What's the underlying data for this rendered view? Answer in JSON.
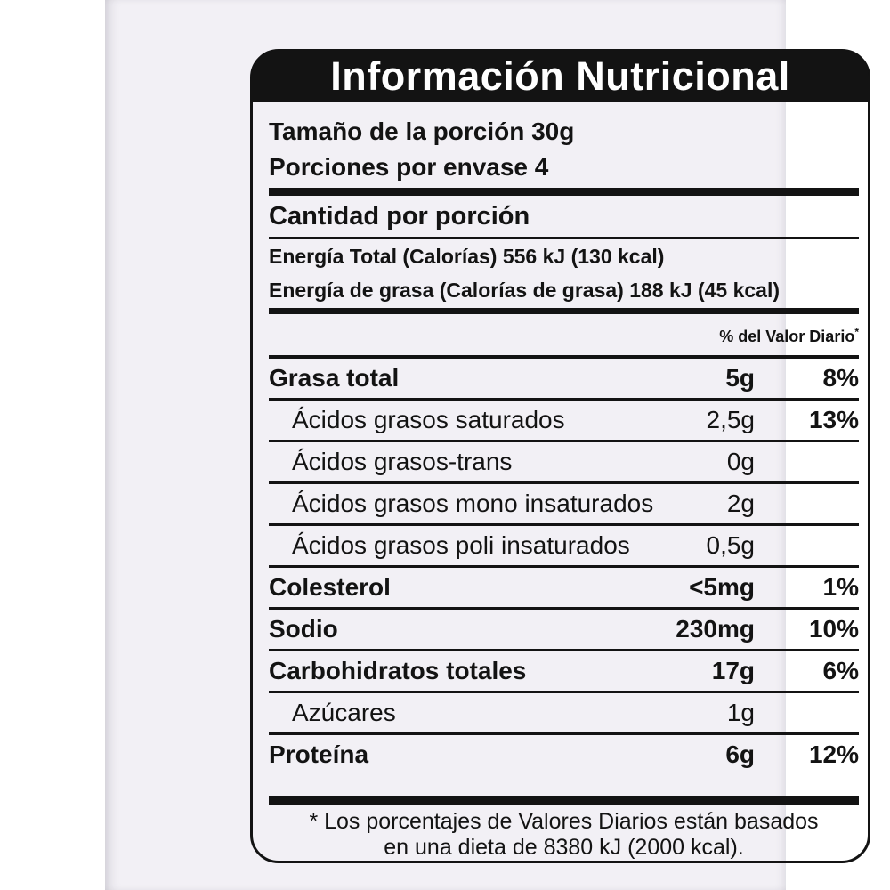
{
  "colors": {
    "ink": "#131313",
    "label_surface": "#f2f0f5",
    "page_background": "#ffffff",
    "title_text": "#ffffff"
  },
  "label": {
    "title": "Información Nutricional",
    "serving_size_line": "Tamaño de la porción 30g",
    "servings_per_container_line": "Porciones por envase 4",
    "amount_per_serving_heading": "Cantidad por porción",
    "energy_total_line": "Energía Total (Calorías) 556 kJ (130 kcal)",
    "energy_fat_line": "Energía de grasa (Calorías de grasa) 188 kJ (45 kcal)",
    "daily_value_header": "% del Valor Diario",
    "daily_value_footnote_marker": "*",
    "rows": [
      {
        "name": "Grasa total",
        "amount": "5g",
        "dv": "8%",
        "style": "main"
      },
      {
        "name": "Ácidos grasos saturados",
        "amount": "2,5g",
        "dv": "13%",
        "style": "sub"
      },
      {
        "name": "Ácidos grasos-trans",
        "amount": "0g",
        "dv": "",
        "style": "sub"
      },
      {
        "name": "Ácidos grasos mono insaturados",
        "amount": "2g",
        "dv": "",
        "style": "sub"
      },
      {
        "name": "Ácidos grasos poli insaturados",
        "amount": "0,5g",
        "dv": "",
        "style": "sub"
      },
      {
        "name": "Colesterol",
        "amount": "<5mg",
        "dv": "1%",
        "style": "main"
      },
      {
        "name": "Sodio",
        "amount": "230mg",
        "dv": "10%",
        "style": "main"
      },
      {
        "name": "Carbohidratos totales",
        "amount": "17g",
        "dv": "6%",
        "style": "main"
      },
      {
        "name": "Azúcares",
        "amount": "1g",
        "dv": "",
        "style": "sub"
      },
      {
        "name": "Proteína",
        "amount": "6g",
        "dv": "12%",
        "style": "main"
      }
    ],
    "footnote_line1": "* Los porcentajes de Valores Diarios están basados",
    "footnote_line2": "en una dieta de 8380 kJ (2000 kcal)."
  }
}
